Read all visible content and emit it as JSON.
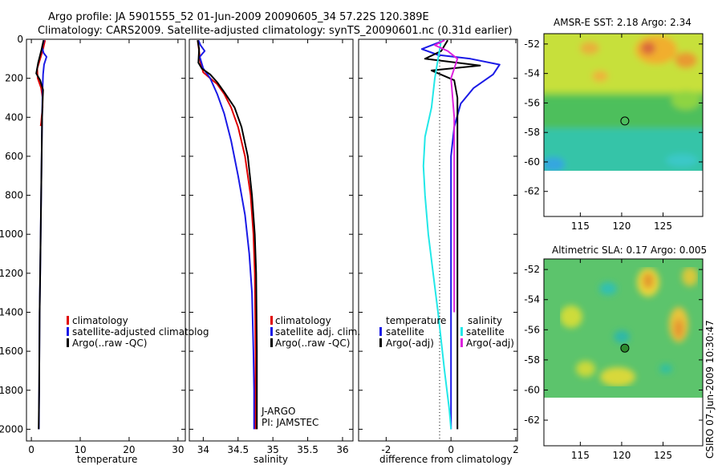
{
  "title": {
    "line1": "Argo profile: JA 5901555_52 01-Jun-2009 20090605_34 57.22S 120.389E",
    "line2": "Climatology: CARS2009. Satellite-adjusted climatology: synTS_20090601.nc (0.31d earlier)"
  },
  "side_label": "CSIRO 07-Jun-2009 10:30:47",
  "colors": {
    "red": "#e00000",
    "blue": "#1a1ae6",
    "black": "#000000",
    "cyan": "#22e8e8",
    "magenta": "#dd22dd",
    "sea": "#3fb8d0",
    "land": "#ffffff"
  },
  "chart_data": [
    {
      "type": "line",
      "title": "",
      "xlabel": "temperature",
      "ylabel": "",
      "xlim": [
        -1,
        31.5
      ],
      "ylim": [
        2060,
        0
      ],
      "xticks": [
        "0",
        "10",
        "20",
        "30"
      ],
      "xtick_values": [
        0,
        10,
        20,
        30
      ],
      "yticks": [
        "0",
        "200",
        "400",
        "600",
        "800",
        "1000",
        "1200",
        "1400",
        "1600",
        "1800",
        "2000"
      ],
      "legend": [
        "climatology",
        "satellite-adjusted climatolog",
        "Argo(..raw -QC)"
      ],
      "series": [
        {
          "name": "climatology",
          "color": "red",
          "width": 2,
          "x": [
            2.8,
            2.4,
            1.8,
            1.2,
            1.3,
            2.0,
            2.3,
            2.3,
            2.1,
            2.0,
            1.9
          ],
          "y": [
            5,
            50,
            100,
            150,
            200,
            250,
            300,
            350,
            400,
            430,
            445
          ]
        },
        {
          "name": "satellite-adjusted climatology",
          "color": "blue",
          "width": 2,
          "x": [
            2.6,
            2.2,
            2.5,
            3.1,
            2.6,
            2.4,
            2.3,
            2.2,
            2.1,
            2.0,
            1.9,
            1.8,
            1.7,
            1.6,
            1.55
          ],
          "y": [
            5,
            40,
            70,
            90,
            130,
            180,
            250,
            400,
            600,
            800,
            1000,
            1200,
            1400,
            1800,
            2000
          ]
        },
        {
          "name": "Argo(..raw -QC)",
          "color": "black",
          "width": 2,
          "x": [
            2.5,
            2.1,
            1.4,
            1.0,
            1.8,
            2.4,
            2.3,
            2.2,
            2.1,
            2.0,
            1.9,
            1.8,
            1.7,
            1.6,
            1.5
          ],
          "y": [
            5,
            50,
            120,
            175,
            210,
            260,
            320,
            400,
            600,
            800,
            1000,
            1200,
            1400,
            1800,
            2000
          ]
        }
      ]
    },
    {
      "type": "line",
      "title": "",
      "xlabel": "salinity",
      "ylabel": "",
      "xlim": [
        33.8,
        36.15
      ],
      "ylim": [
        2060,
        0
      ],
      "xticks": [
        "34",
        "34.5",
        "35",
        "35.5",
        "36"
      ],
      "xtick_values": [
        34,
        34.5,
        35,
        35.5,
        36
      ],
      "legend": [
        "climatology",
        "satellite adj. clim.",
        "Argo(..raw -QC)"
      ],
      "annotations": [
        "J-ARGO",
        "PI: JAMSTEC"
      ],
      "series": [
        {
          "name": "climatology",
          "color": "red",
          "width": 2,
          "x": [
            33.92,
            33.94,
            33.96,
            34.0,
            34.1,
            34.2,
            34.3,
            34.4,
            34.5,
            34.6,
            34.68,
            34.72,
            34.74,
            34.75,
            34.75
          ],
          "y": [
            5,
            60,
            120,
            170,
            200,
            230,
            280,
            350,
            450,
            600,
            800,
            1000,
            1200,
            1600,
            2000
          ]
        },
        {
          "name": "satellite adj. clim.",
          "color": "blue",
          "width": 2,
          "x": [
            33.93,
            33.96,
            34.02,
            33.95,
            34.0,
            34.1,
            34.2,
            34.3,
            34.4,
            34.5,
            34.6,
            34.66,
            34.7,
            34.72,
            34.73,
            34.73
          ],
          "y": [
            5,
            30,
            60,
            90,
            150,
            200,
            280,
            380,
            520,
            700,
            900,
            1100,
            1300,
            1600,
            1800,
            2000
          ]
        },
        {
          "name": "Argo(..raw -QC)",
          "color": "black",
          "width": 2,
          "x": [
            33.92,
            33.94,
            33.93,
            33.98,
            34.1,
            34.2,
            34.3,
            34.45,
            34.55,
            34.64,
            34.7,
            34.74,
            34.76,
            34.77,
            34.77
          ],
          "y": [
            5,
            50,
            120,
            150,
            180,
            220,
            270,
            350,
            450,
            600,
            800,
            1000,
            1200,
            1600,
            2000
          ]
        }
      ]
    },
    {
      "type": "line",
      "title": "",
      "xlabel": "difference from climatology",
      "ylabel": "",
      "xlim": [
        -2.85,
        2.05
      ],
      "ylim": [
        2060,
        0
      ],
      "xticks": [
        "-2",
        "0",
        "2"
      ],
      "xtick_values": [
        -2,
        0,
        2
      ],
      "legend_titles": [
        "temperature",
        "salinity"
      ],
      "legend": [
        "satellite",
        "Argo(-adj)",
        "satellite",
        "Argo(-adj)"
      ],
      "series": [
        {
          "name": "temperature satellite",
          "color": "blue",
          "width": 2,
          "x": [
            -0.2,
            -0.9,
            -0.4,
            0.6,
            1.5,
            1.3,
            0.7,
            0.3,
            0.1,
            0.0,
            0.0,
            0.0,
            0.0,
            0.0,
            0.0
          ],
          "y": [
            5,
            50,
            80,
            100,
            130,
            180,
            250,
            330,
            450,
            600,
            800,
            1000,
            1200,
            1600,
            2000
          ]
        },
        {
          "name": "temperature Argo(-adj)",
          "color": "black",
          "width": 2,
          "x": [
            -0.1,
            -0.3,
            -0.8,
            0.2,
            0.9,
            -0.6,
            0.1,
            0.2,
            0.2,
            0.2,
            0.2,
            0.2,
            0.2,
            0.2,
            0.2
          ],
          "y": [
            5,
            60,
            100,
            120,
            135,
            160,
            210,
            300,
            450,
            600,
            800,
            1000,
            1200,
            1600,
            2000
          ]
        },
        {
          "name": "salinity satellite",
          "color": "cyan",
          "width": 2,
          "x": [
            -0.3,
            -0.5,
            -0.6,
            -0.8,
            -0.85,
            -0.8,
            -0.7,
            -0.55,
            -0.4,
            -0.2,
            -0.05,
            0.0
          ],
          "y": [
            5,
            200,
            350,
            500,
            650,
            800,
            1000,
            1200,
            1400,
            1700,
            1900,
            2000
          ]
        },
        {
          "name": "salinity Argo(-adj)",
          "color": "magenta",
          "width": 2,
          "x": [
            -0.2,
            -0.5,
            -0.1,
            0.2,
            0.1,
            0.0,
            0.05,
            0.1,
            0.1,
            0.1,
            0.1,
            0.1
          ],
          "y": [
            5,
            30,
            60,
            100,
            150,
            200,
            300,
            400,
            600,
            800,
            1000,
            1400
          ]
        }
      ]
    },
    {
      "type": "heatmap",
      "title": "AMSR-E SST: 2.18 Argo: 2.34",
      "xlim": [
        110.6,
        129.8
      ],
      "ylim": [
        -63.7,
        -51.3
      ],
      "xticks": [
        "115",
        "120",
        "125"
      ],
      "xtick_values": [
        115,
        120,
        125
      ],
      "yticks": [
        "-52",
        "-54",
        "-56",
        "-58",
        "-60",
        "-62"
      ],
      "ytick_values": [
        -52,
        -54,
        -56,
        -58,
        -60,
        -62
      ],
      "marker": {
        "lon": 120.389,
        "lat": -57.22,
        "filled": false
      }
    },
    {
      "type": "heatmap",
      "title": "Altimetric SLA: 0.17 Argo: 0.005",
      "xlim": [
        110.6,
        129.8
      ],
      "ylim": [
        -63.7,
        -51.3
      ],
      "xticks": [
        "115",
        "120",
        "125"
      ],
      "xtick_values": [
        115,
        120,
        125
      ],
      "yticks": [
        "-52",
        "-54",
        "-56",
        "-58",
        "-60",
        "-62"
      ],
      "ytick_values": [
        -52,
        -54,
        -56,
        -58,
        -60,
        -62
      ],
      "marker": {
        "lon": 120.389,
        "lat": -57.22,
        "filled": true
      }
    }
  ]
}
